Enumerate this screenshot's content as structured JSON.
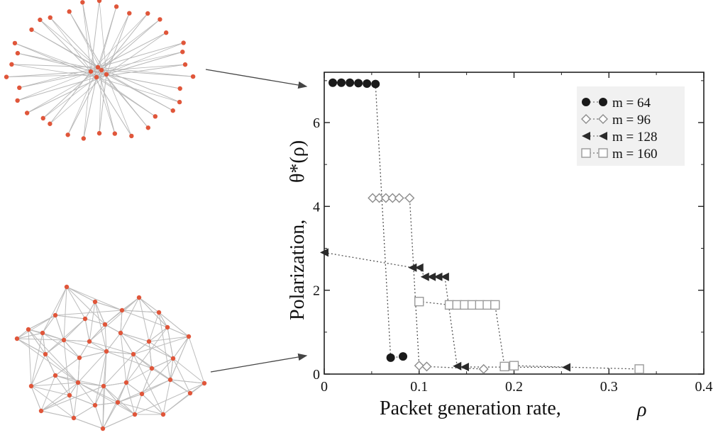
{
  "chart_data": {
    "type": "scatter",
    "title": "",
    "xlabel": "Packet generation rate,",
    "xlabel_symbol": "ρ",
    "ylabel": "Polarization,",
    "ylabel_symbol": "θ*(ρ)",
    "xlim": [
      0,
      0.4
    ],
    "ylim": [
      0,
      7.2
    ],
    "xticks": [
      0,
      0.1,
      0.2,
      0.3,
      0.4
    ],
    "xtick_labels": [
      "0",
      "0.1",
      "0.2",
      "0.3",
      "0.4"
    ],
    "yticks": [
      0,
      2,
      4,
      6
    ],
    "ytick_labels": [
      "0",
      "2",
      "4",
      "6"
    ],
    "grid": false,
    "legend_position": "top-right",
    "connector_style": "dotted",
    "series": [
      {
        "name": "m = 64",
        "marker": "circle-filled",
        "color": "#1a1a1a",
        "x": [
          0.009,
          0.018,
          0.027,
          0.036,
          0.045,
          0.054,
          0.07,
          0.083
        ],
        "y": [
          6.95,
          6.95,
          6.95,
          6.94,
          6.93,
          6.92,
          0.39,
          0.42
        ]
      },
      {
        "name": "m = 96",
        "marker": "diamond-open",
        "color": "#8c8c8c",
        "x": [
          0.051,
          0.058,
          0.065,
          0.072,
          0.079,
          0.09,
          0.1,
          0.108,
          0.168
        ],
        "y": [
          4.2,
          4.2,
          4.2,
          4.2,
          4.2,
          4.2,
          0.2,
          0.18,
          0.12
        ]
      },
      {
        "name": "m = 128",
        "marker": "triangle-left-filled",
        "color": "#2a2a2a",
        "x": [
          0.0,
          0.093,
          0.1,
          0.106,
          0.113,
          0.12,
          0.127,
          0.14,
          0.148,
          0.255
        ],
        "y": [
          2.9,
          2.54,
          2.54,
          2.32,
          2.32,
          2.32,
          2.32,
          0.19,
          0.17,
          0.16
        ]
      },
      {
        "name": "m = 160",
        "marker": "square-open",
        "color": "#9a9a9a",
        "x": [
          0.1,
          0.132,
          0.14,
          0.148,
          0.156,
          0.164,
          0.172,
          0.18,
          0.19,
          0.2,
          0.332
        ],
        "y": [
          1.73,
          1.65,
          1.65,
          1.65,
          1.65,
          1.65,
          1.65,
          1.65,
          0.18,
          0.2,
          0.12
        ]
      }
    ]
  },
  "networks": [
    {
      "kind": "star",
      "node_color": "#e0563a",
      "edge_color": "#b8b8b8"
    },
    {
      "kind": "random",
      "node_color": "#e0563a",
      "edge_color": "#bdbdbd"
    }
  ]
}
